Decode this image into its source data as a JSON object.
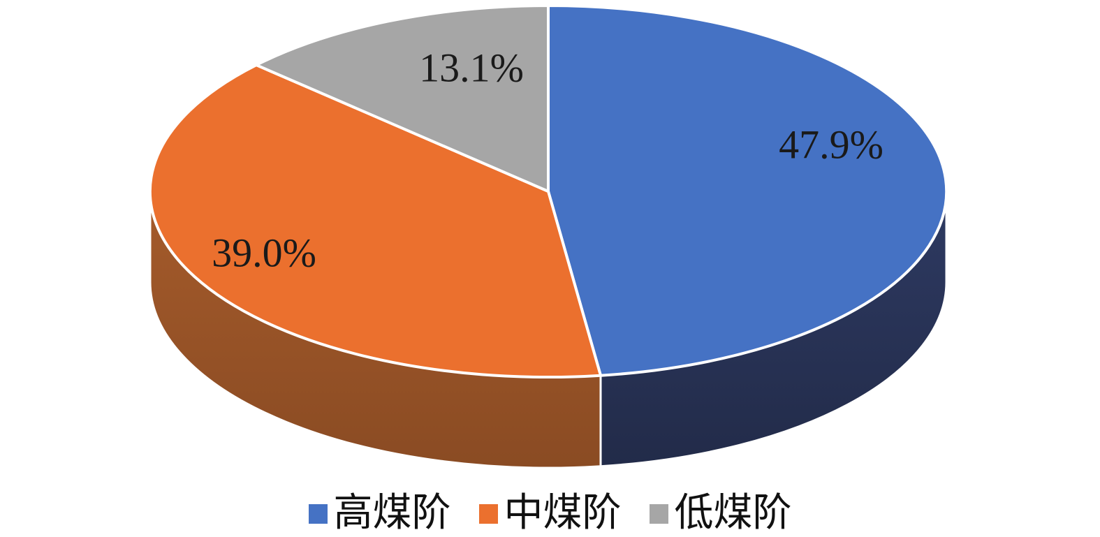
{
  "chart_data": {
    "type": "pie",
    "style": "3d",
    "title": "",
    "background": "#FFFFFF",
    "start_angle_deg": 0,
    "direction": "clockwise",
    "legend_position": "bottom",
    "data_label_color": "#1A1A1A",
    "slices": [
      {
        "label": "高煤阶",
        "value": 47.9,
        "display": "47.9%",
        "color": "#4572C4",
        "wall_color_top": "#2E3A62",
        "wall_color_bottom": "#222B49"
      },
      {
        "label": "中煤阶",
        "value": 39.0,
        "display": "39.0%",
        "color": "#EB702E",
        "wall_color_top": "#A55B2B",
        "wall_color_bottom": "#8A4B23"
      },
      {
        "label": "低煤阶",
        "value": 13.1,
        "display": "13.1%",
        "color": "#A6A6A6",
        "wall_color_top": "#8C8C8C",
        "wall_color_bottom": "#7F7F7F"
      }
    ]
  }
}
